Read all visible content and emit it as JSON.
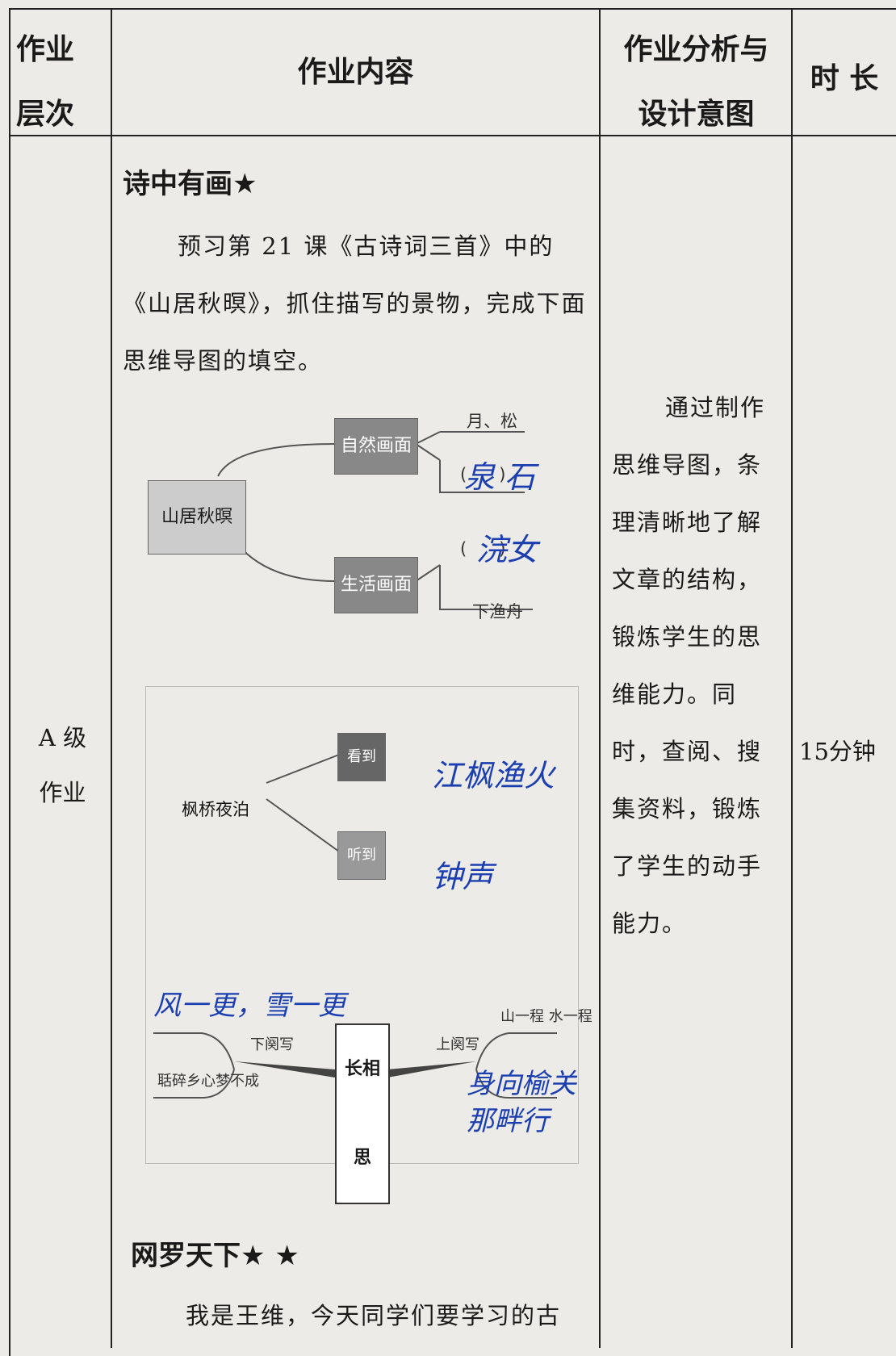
{
  "header": {
    "level": "作业层次",
    "content": "作业内容",
    "analysis": "作业分析与设计意图",
    "duration": "时 长"
  },
  "row": {
    "level": "A 级作业",
    "section1": {
      "title": "诗中有画★",
      "text": "预习第 21 课《古诗词三首》中的《山居秋暝》，抓住描写的景物，完成下面思维导图的填空。"
    },
    "mindmap1": {
      "center": "山居秋暝",
      "branches": [
        "自然画面",
        "生活画面"
      ],
      "leaves": [
        "月、松",
        "(      )",
        "(      )",
        "下渔舟"
      ],
      "handwritten": [
        "泉 石",
        "浣女"
      ]
    },
    "mindmap2": {
      "center": "枫桥夜泊",
      "branches": [
        "看到",
        "听到"
      ],
      "handwritten": [
        "江枫渔火",
        "钟声"
      ]
    },
    "mindmap3": {
      "center": "长相思",
      "branches": [
        "下阕写",
        "上阕写"
      ],
      "leaves": [
        "聒碎乡心梦不成",
        "山一程 水一程"
      ],
      "handwritten": [
        "风一更，雪一更",
        "身向榆关那畔行"
      ]
    },
    "section2": {
      "title": "网罗天下★ ★",
      "text": "我是王维，今天同学们要学习的古"
    },
    "analysis": "通过制作思维导图，条理清晰地了解文章的结构，锻炼学生的思维能力。同时，查阅、搜集资料，锻炼了学生的动手能力。",
    "duration": "15分钟"
  }
}
